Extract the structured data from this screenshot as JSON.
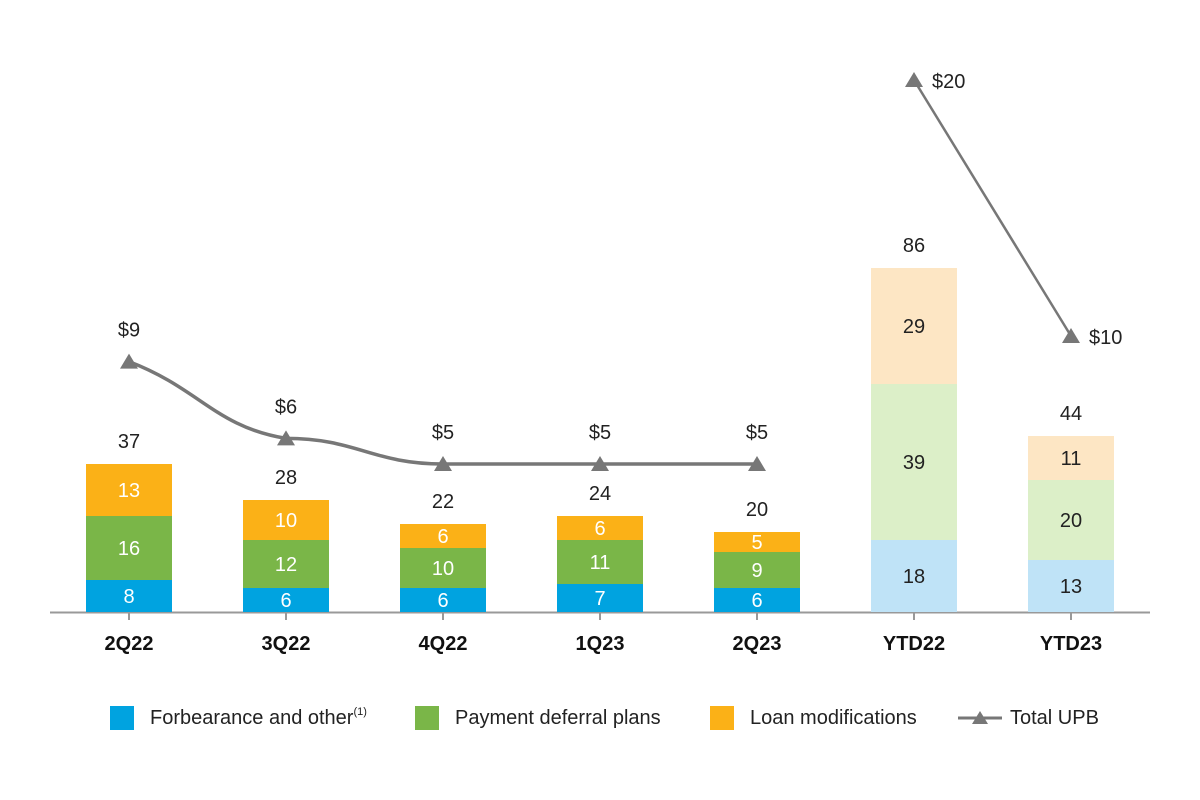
{
  "chart_data": {
    "type": "bar",
    "stacked": true,
    "categories": [
      "2Q22",
      "3Q22",
      "4Q22",
      "1Q23",
      "2Q23",
      "YTD22",
      "YTD23"
    ],
    "series": [
      {
        "name": "Forbearance and other",
        "color": "#00a3e0",
        "light_color": "#bfe3f7",
        "values": [
          8,
          6,
          6,
          7,
          6,
          18,
          13
        ]
      },
      {
        "name": "Payment deferral plans",
        "color": "#7ab648",
        "light_color": "#dcefc8",
        "values": [
          16,
          12,
          10,
          11,
          9,
          39,
          20
        ]
      },
      {
        "name": "Loan modifications",
        "color": "#fbb117",
        "light_color": "#fde6c4",
        "values": [
          13,
          10,
          6,
          6,
          5,
          29,
          11
        ]
      }
    ],
    "totals": [
      37,
      28,
      22,
      24,
      20,
      86,
      44
    ],
    "line_series": {
      "name": "Total UPB",
      "color": "#777777",
      "values": [
        9,
        6,
        5,
        5,
        5,
        20,
        10
      ],
      "labels": [
        "$9",
        "$6",
        "$5",
        "$5",
        "$5",
        "$20",
        "$10"
      ]
    },
    "ylim_bars": [
      0,
      100
    ],
    "legend_position": "bottom",
    "grid": false
  },
  "legend": {
    "items": [
      {
        "label": "Forbearance and other",
        "superscript": "(1)",
        "color": "#00a3e0",
        "kind": "swatch"
      },
      {
        "label": "Payment deferral plans",
        "superscript": "",
        "color": "#7ab648",
        "kind": "swatch"
      },
      {
        "label": "Loan modifications",
        "superscript": "",
        "color": "#fbb117",
        "kind": "swatch"
      },
      {
        "label": "Total UPB",
        "superscript": "",
        "color": "#777777",
        "kind": "line"
      }
    ]
  }
}
